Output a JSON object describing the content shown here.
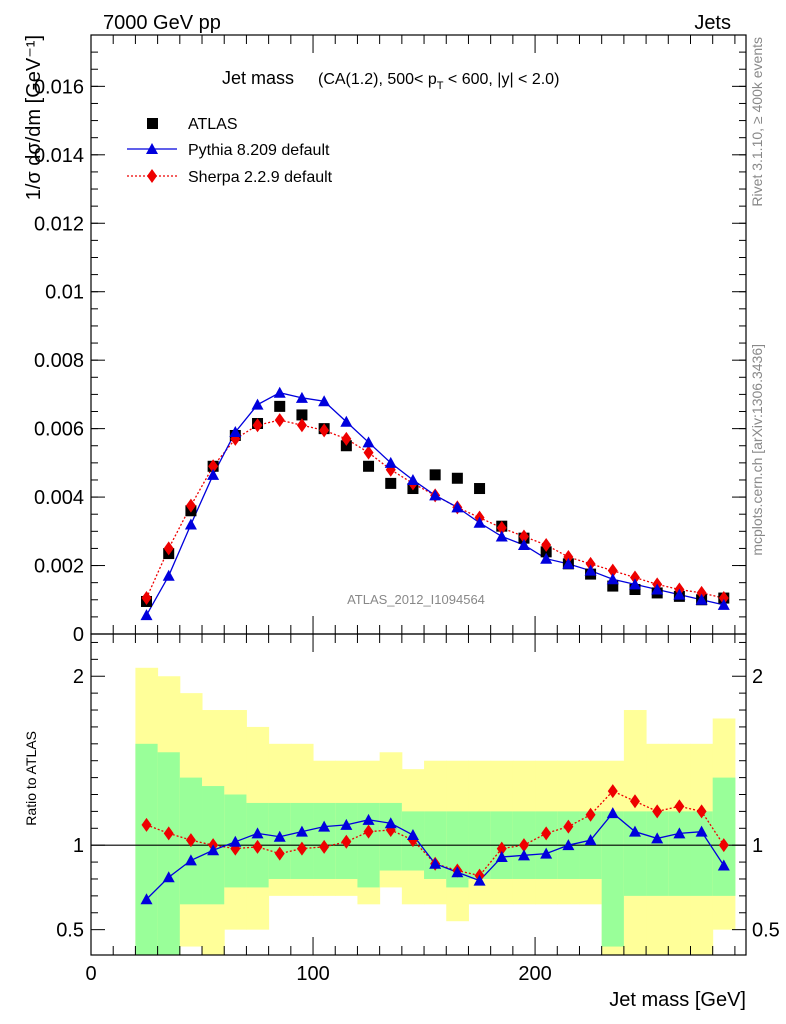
{
  "header": {
    "left": "7000 GeV pp",
    "right": "Jets"
  },
  "side": {
    "rivet": "Rivet 3.1.10, ≥ 400k events",
    "mcplots": "mcplots.cern.ch [arXiv:1306.3436]"
  },
  "colors": {
    "atlas": "#000000",
    "pythia": "#0000dd",
    "sherpa": "#ee0000",
    "band_outer": "#ffff99",
    "band_inner": "#99ff99"
  },
  "chart_data": [
    {
      "type": "scatter",
      "title": "Jet mass",
      "subtitle_parts": {
        "pre": "(CA(1.2), 500< p",
        "sub": "T",
        "post": " < 600, |y| < 2.0)"
      },
      "ylabel": "1/σ dσ/dm [GeV⁻¹]",
      "watermark": "ATLAS_2012_I1094564",
      "xlim": [
        0,
        295
      ],
      "ylim": [
        0,
        0.0175
      ],
      "yticks": [
        0,
        0.002,
        0.004,
        0.006,
        0.008,
        0.01,
        0.012,
        0.014,
        0.016
      ],
      "ytick_labels": [
        "0",
        "0.002",
        "0.004",
        "0.006",
        "0.008",
        "0.01",
        "0.012",
        "0.014",
        "0.016"
      ],
      "legend_position": "top-left",
      "x": [
        25,
        35,
        45,
        55,
        65,
        75,
        85,
        95,
        105,
        115,
        125,
        135,
        145,
        155,
        165,
        175,
        185,
        195,
        205,
        215,
        225,
        235,
        245,
        255,
        265,
        275,
        285
      ],
      "series": [
        {
          "name": "ATLAS",
          "marker": "square",
          "values": [
            0.00095,
            0.00235,
            0.0036,
            0.0049,
            0.0058,
            0.00615,
            0.00665,
            0.0064,
            0.006,
            0.0055,
            0.0049,
            0.0044,
            0.00425,
            0.00465,
            0.00455,
            0.00425,
            0.00315,
            0.0028,
            0.0024,
            0.00205,
            0.00175,
            0.0014,
            0.0013,
            0.0012,
            0.0011,
            0.001,
            0.00105
          ]
        },
        {
          "name": "Pythia 8.209 default",
          "marker": "triangle",
          "line": "solid",
          "values": [
            0.00055,
            0.0017,
            0.0032,
            0.00465,
            0.0059,
            0.0067,
            0.00705,
            0.0069,
            0.0068,
            0.0062,
            0.0056,
            0.005,
            0.0045,
            0.00405,
            0.0037,
            0.00325,
            0.00285,
            0.0026,
            0.0022,
            0.00205,
            0.00185,
            0.0016,
            0.00145,
            0.0013,
            0.00115,
            0.001,
            0.00085
          ]
        },
        {
          "name": "Sherpa 2.2.9 default",
          "marker": "diamond",
          "line": "dotted",
          "values": [
            0.00105,
            0.0025,
            0.00375,
            0.0049,
            0.0057,
            0.0061,
            0.00625,
            0.0061,
            0.00595,
            0.0057,
            0.0053,
            0.0048,
            0.0044,
            0.00405,
            0.0037,
            0.0034,
            0.0031,
            0.00285,
            0.0026,
            0.00225,
            0.00205,
            0.00185,
            0.00165,
            0.00145,
            0.0013,
            0.0012,
            0.00105
          ]
        }
      ]
    },
    {
      "type": "line",
      "ylabel": "Ratio to ATLAS",
      "xlabel": "Jet mass [GeV]",
      "xlim": [
        0,
        295
      ],
      "xticks": [
        0,
        100,
        200
      ],
      "xtick_labels": [
        "0",
        "100",
        "200"
      ],
      "ylim": [
        0.35,
        2.25
      ],
      "yticks": [
        0.5,
        1,
        2
      ],
      "ytick_labels": [
        "0.5",
        "1",
        "2"
      ],
      "bin_edges": [
        20,
        30,
        40,
        50,
        60,
        70,
        80,
        90,
        100,
        110,
        120,
        130,
        140,
        150,
        160,
        170,
        180,
        190,
        200,
        210,
        220,
        230,
        240,
        250,
        260,
        270,
        280,
        290
      ],
      "band_outer_lo": [
        0.3,
        0.3,
        0.4,
        0.3,
        0.5,
        0.5,
        0.7,
        0.7,
        0.7,
        0.7,
        0.65,
        0.75,
        0.65,
        0.65,
        0.55,
        0.65,
        0.65,
        0.65,
        0.65,
        0.65,
        0.65,
        0.3,
        0.3,
        0.3,
        0.3,
        0.3,
        0.5
      ],
      "band_outer_hi": [
        2.05,
        2.0,
        1.9,
        1.8,
        1.8,
        1.7,
        1.6,
        1.6,
        1.5,
        1.5,
        1.5,
        1.55,
        1.45,
        1.5,
        1.5,
        1.5,
        1.5,
        1.5,
        1.5,
        1.5,
        1.5,
        1.5,
        1.8,
        1.6,
        1.6,
        1.6,
        1.75
      ],
      "band_inner_lo": [
        0.3,
        0.3,
        0.65,
        0.65,
        0.75,
        0.75,
        0.8,
        0.8,
        0.8,
        0.8,
        0.75,
        0.85,
        0.85,
        0.8,
        0.75,
        0.8,
        0.8,
        0.8,
        0.8,
        0.8,
        0.8,
        0.4,
        0.7,
        0.7,
        0.7,
        0.7,
        0.7
      ],
      "band_inner_hi": [
        1.6,
        1.55,
        1.4,
        1.35,
        1.3,
        1.25,
        1.25,
        1.25,
        1.25,
        1.25,
        1.25,
        1.25,
        1.2,
        1.2,
        1.2,
        1.2,
        1.2,
        1.2,
        1.2,
        1.2,
        1.2,
        1.2,
        1.2,
        1.2,
        1.2,
        1.2,
        1.4
      ],
      "x": [
        25,
        35,
        45,
        55,
        65,
        75,
        85,
        95,
        105,
        115,
        125,
        135,
        145,
        155,
        165,
        175,
        185,
        195,
        205,
        215,
        225,
        235,
        245,
        255,
        265,
        275,
        285
      ],
      "series": [
        {
          "name": "Pythia 8.209 default",
          "marker": "triangle",
          "line": "solid",
          "values": [
            0.68,
            0.81,
            0.91,
            0.97,
            1.02,
            1.07,
            1.05,
            1.08,
            1.11,
            1.12,
            1.15,
            1.13,
            1.06,
            0.89,
            0.84,
            0.79,
            0.93,
            0.94,
            0.95,
            1.0,
            1.03,
            1.19,
            1.08,
            1.04,
            1.07,
            1.08,
            0.88
          ]
        },
        {
          "name": "Sherpa 2.2.9 default",
          "marker": "diamond",
          "line": "dotted",
          "values": [
            1.12,
            1.07,
            1.03,
            1.0,
            0.98,
            0.99,
            0.95,
            0.98,
            0.99,
            1.02,
            1.08,
            1.09,
            1.03,
            0.89,
            0.85,
            0.82,
            0.98,
            1.0,
            1.07,
            1.11,
            1.18,
            1.32,
            1.26,
            1.2,
            1.23,
            1.2,
            1.0
          ]
        }
      ]
    }
  ]
}
